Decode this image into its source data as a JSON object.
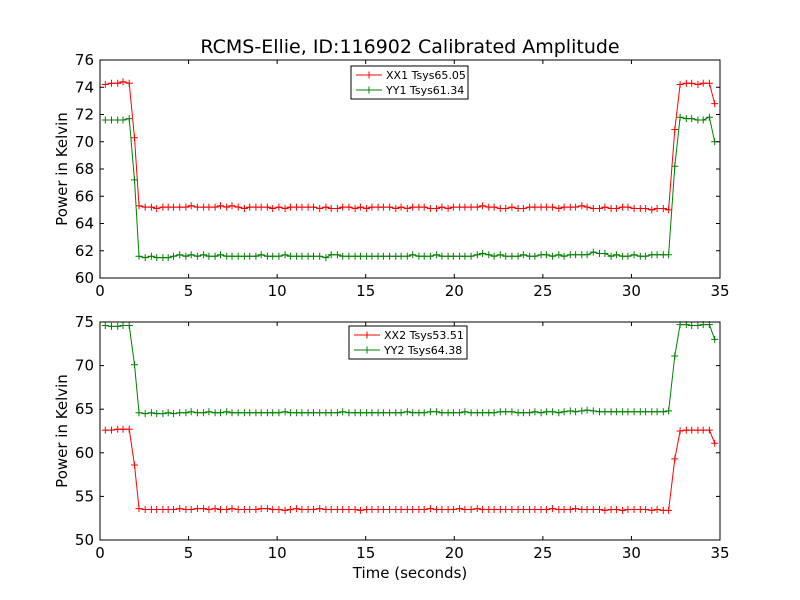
{
  "title": "RCMS-Ellie, ID:116902 Calibrated Amplitude",
  "xlabel": "Time (seconds)",
  "colors": {
    "red": "#ff0000",
    "green": "#008000"
  },
  "chart_data": [
    {
      "type": "line",
      "title": "RCMS-Ellie, ID:116902 Calibrated Amplitude",
      "xlabel": "",
      "ylabel": "Power in Kelvin",
      "xlim": [
        0,
        35
      ],
      "ylim": [
        60,
        76
      ],
      "xticks": [
        0,
        5,
        10,
        15,
        20,
        25,
        30,
        35
      ],
      "yticks": [
        60,
        62,
        64,
        66,
        68,
        70,
        72,
        74,
        76
      ],
      "legend_position": "top-center",
      "grid": false,
      "x": [
        0.3,
        0.65,
        1.0,
        1.3,
        1.65,
        1.95,
        2.2,
        2.55,
        2.9,
        3.2,
        3.55,
        3.85,
        4.15,
        4.5,
        4.85,
        5.15,
        5.5,
        5.85,
        6.15,
        6.5,
        6.8,
        7.15,
        7.45,
        7.8,
        8.15,
        8.45,
        8.8,
        9.1,
        9.45,
        9.75,
        10.1,
        10.45,
        10.75,
        11.1,
        11.4,
        11.75,
        12.05,
        12.4,
        12.75,
        13.05,
        13.4,
        13.7,
        14.05,
        14.4,
        14.7,
        15.05,
        15.35,
        15.7,
        16.0,
        16.35,
        16.7,
        17.0,
        17.35,
        17.65,
        18.0,
        18.3,
        18.65,
        19.0,
        19.3,
        19.65,
        19.95,
        20.3,
        20.6,
        20.95,
        21.3,
        21.6,
        21.95,
        22.25,
        22.6,
        22.9,
        23.25,
        23.6,
        23.9,
        24.25,
        24.55,
        24.9,
        25.2,
        25.55,
        25.9,
        26.2,
        26.55,
        26.85,
        27.2,
        27.5,
        27.85,
        28.2,
        28.5,
        28.85,
        29.15,
        29.5,
        29.8,
        30.15,
        30.5,
        30.8,
        31.15,
        31.45,
        31.8,
        32.1,
        32.45,
        32.75,
        33.1,
        33.4,
        33.75,
        34.05,
        34.4,
        34.7
      ],
      "series": [
        {
          "name": "XX1 Tsys65.05",
          "color": "#ff0000",
          "values": [
            74.2,
            74.3,
            74.3,
            74.4,
            74.3,
            70.3,
            65.3,
            65.2,
            65.2,
            65.1,
            65.2,
            65.2,
            65.2,
            65.2,
            65.2,
            65.3,
            65.2,
            65.2,
            65.2,
            65.2,
            65.3,
            65.2,
            65.3,
            65.2,
            65.1,
            65.2,
            65.2,
            65.2,
            65.2,
            65.1,
            65.2,
            65.1,
            65.2,
            65.2,
            65.2,
            65.2,
            65.2,
            65.1,
            65.2,
            65.1,
            65.1,
            65.2,
            65.2,
            65.1,
            65.2,
            65.1,
            65.2,
            65.2,
            65.2,
            65.2,
            65.1,
            65.2,
            65.1,
            65.2,
            65.2,
            65.2,
            65.1,
            65.1,
            65.2,
            65.1,
            65.2,
            65.2,
            65.2,
            65.2,
            65.2,
            65.3,
            65.2,
            65.2,
            65.1,
            65.1,
            65.2,
            65.1,
            65.1,
            65.2,
            65.2,
            65.2,
            65.2,
            65.2,
            65.1,
            65.2,
            65.2,
            65.2,
            65.3,
            65.2,
            65.1,
            65.1,
            65.2,
            65.1,
            65.1,
            65.2,
            65.2,
            65.1,
            65.1,
            65.1,
            65.0,
            65.1,
            65.1,
            65.0,
            70.9,
            74.2,
            74.3,
            74.3,
            74.2,
            74.3,
            74.3,
            72.8
          ]
        },
        {
          "name": "YY1 Tsys61.34",
          "color": "#008000",
          "values": [
            71.6,
            71.6,
            71.6,
            71.6,
            71.7,
            67.2,
            61.6,
            61.5,
            61.6,
            61.5,
            61.5,
            61.5,
            61.6,
            61.7,
            61.6,
            61.7,
            61.6,
            61.7,
            61.6,
            61.6,
            61.7,
            61.6,
            61.6,
            61.6,
            61.6,
            61.6,
            61.6,
            61.7,
            61.6,
            61.6,
            61.6,
            61.7,
            61.6,
            61.6,
            61.6,
            61.6,
            61.6,
            61.6,
            61.5,
            61.7,
            61.7,
            61.6,
            61.6,
            61.6,
            61.6,
            61.6,
            61.6,
            61.6,
            61.6,
            61.6,
            61.6,
            61.6,
            61.6,
            61.7,
            61.6,
            61.6,
            61.6,
            61.7,
            61.6,
            61.6,
            61.6,
            61.6,
            61.6,
            61.6,
            61.7,
            61.8,
            61.7,
            61.6,
            61.7,
            61.6,
            61.6,
            61.6,
            61.7,
            61.6,
            61.6,
            61.7,
            61.7,
            61.6,
            61.7,
            61.6,
            61.7,
            61.7,
            61.7,
            61.7,
            61.9,
            61.8,
            61.8,
            61.6,
            61.7,
            61.6,
            61.6,
            61.7,
            61.6,
            61.6,
            61.7,
            61.7,
            61.7,
            61.7,
            68.2,
            71.8,
            71.7,
            71.7,
            71.6,
            71.6,
            71.8,
            70.0
          ]
        }
      ]
    },
    {
      "type": "line",
      "title": "",
      "xlabel": "Time (seconds)",
      "ylabel": "Power in Kelvin",
      "xlim": [
        0,
        35
      ],
      "ylim": [
        50,
        75
      ],
      "xticks": [
        0,
        5,
        10,
        15,
        20,
        25,
        30,
        35
      ],
      "yticks": [
        50,
        55,
        60,
        65,
        70,
        75
      ],
      "legend_position": "top-center",
      "grid": false,
      "x": [
        0.3,
        0.65,
        1.0,
        1.3,
        1.65,
        1.95,
        2.2,
        2.55,
        2.9,
        3.2,
        3.55,
        3.85,
        4.15,
        4.5,
        4.85,
        5.15,
        5.5,
        5.85,
        6.15,
        6.5,
        6.8,
        7.15,
        7.45,
        7.8,
        8.15,
        8.45,
        8.8,
        9.1,
        9.45,
        9.75,
        10.1,
        10.45,
        10.75,
        11.1,
        11.4,
        11.75,
        12.05,
        12.4,
        12.75,
        13.05,
        13.4,
        13.7,
        14.05,
        14.4,
        14.7,
        15.05,
        15.35,
        15.7,
        16.0,
        16.35,
        16.7,
        17.0,
        17.35,
        17.65,
        18.0,
        18.3,
        18.65,
        19.0,
        19.3,
        19.65,
        19.95,
        20.3,
        20.6,
        20.95,
        21.3,
        21.6,
        21.95,
        22.25,
        22.6,
        22.9,
        23.25,
        23.6,
        23.9,
        24.25,
        24.55,
        24.9,
        25.2,
        25.55,
        25.9,
        26.2,
        26.55,
        26.85,
        27.2,
        27.5,
        27.85,
        28.2,
        28.5,
        28.85,
        29.15,
        29.5,
        29.8,
        30.15,
        30.5,
        30.8,
        31.15,
        31.45,
        31.8,
        32.1,
        32.45,
        32.75,
        33.1,
        33.4,
        33.75,
        34.05,
        34.4,
        34.7
      ],
      "series": [
        {
          "name": "XX2 Tsys53.51",
          "color": "#ff0000",
          "values": [
            62.6,
            62.6,
            62.7,
            62.7,
            62.7,
            58.6,
            53.6,
            53.5,
            53.5,
            53.5,
            53.5,
            53.5,
            53.5,
            53.6,
            53.5,
            53.5,
            53.6,
            53.6,
            53.5,
            53.6,
            53.5,
            53.5,
            53.6,
            53.5,
            53.5,
            53.5,
            53.5,
            53.6,
            53.6,
            53.5,
            53.5,
            53.4,
            53.5,
            53.6,
            53.5,
            53.5,
            53.5,
            53.6,
            53.5,
            53.5,
            53.5,
            53.5,
            53.5,
            53.5,
            53.4,
            53.5,
            53.5,
            53.5,
            53.5,
            53.5,
            53.5,
            53.5,
            53.5,
            53.5,
            53.5,
            53.5,
            53.6,
            53.5,
            53.5,
            53.5,
            53.5,
            53.6,
            53.5,
            53.5,
            53.6,
            53.5,
            53.5,
            53.5,
            53.5,
            53.5,
            53.5,
            53.5,
            53.5,
            53.5,
            53.5,
            53.5,
            53.5,
            53.6,
            53.5,
            53.5,
            53.5,
            53.6,
            53.5,
            53.5,
            53.5,
            53.5,
            53.4,
            53.5,
            53.5,
            53.4,
            53.5,
            53.5,
            53.5,
            53.5,
            53.4,
            53.5,
            53.4,
            53.4,
            59.3,
            62.5,
            62.6,
            62.6,
            62.6,
            62.6,
            62.6,
            61.1
          ]
        },
        {
          "name": "YY2 Tsys64.38",
          "color": "#008000",
          "values": [
            74.6,
            74.5,
            74.5,
            74.6,
            74.6,
            70.1,
            64.6,
            64.5,
            64.6,
            64.5,
            64.5,
            64.6,
            64.5,
            64.6,
            64.6,
            64.7,
            64.6,
            64.6,
            64.7,
            64.6,
            64.6,
            64.7,
            64.6,
            64.6,
            64.6,
            64.6,
            64.6,
            64.6,
            64.6,
            64.6,
            64.6,
            64.7,
            64.6,
            64.6,
            64.6,
            64.6,
            64.6,
            64.6,
            64.6,
            64.6,
            64.6,
            64.7,
            64.6,
            64.6,
            64.6,
            64.6,
            64.6,
            64.6,
            64.6,
            64.6,
            64.6,
            64.6,
            64.7,
            64.6,
            64.6,
            64.6,
            64.7,
            64.7,
            64.6,
            64.6,
            64.6,
            64.6,
            64.7,
            64.6,
            64.6,
            64.6,
            64.6,
            64.6,
            64.7,
            64.7,
            64.7,
            64.6,
            64.6,
            64.6,
            64.7,
            64.6,
            64.7,
            64.7,
            64.6,
            64.7,
            64.8,
            64.7,
            64.8,
            64.9,
            64.8,
            64.7,
            64.7,
            64.7,
            64.7,
            64.7,
            64.7,
            64.7,
            64.7,
            64.7,
            64.7,
            64.7,
            64.7,
            64.8,
            71.1,
            74.7,
            74.7,
            74.6,
            74.6,
            74.7,
            74.7,
            73.0
          ]
        }
      ]
    }
  ]
}
